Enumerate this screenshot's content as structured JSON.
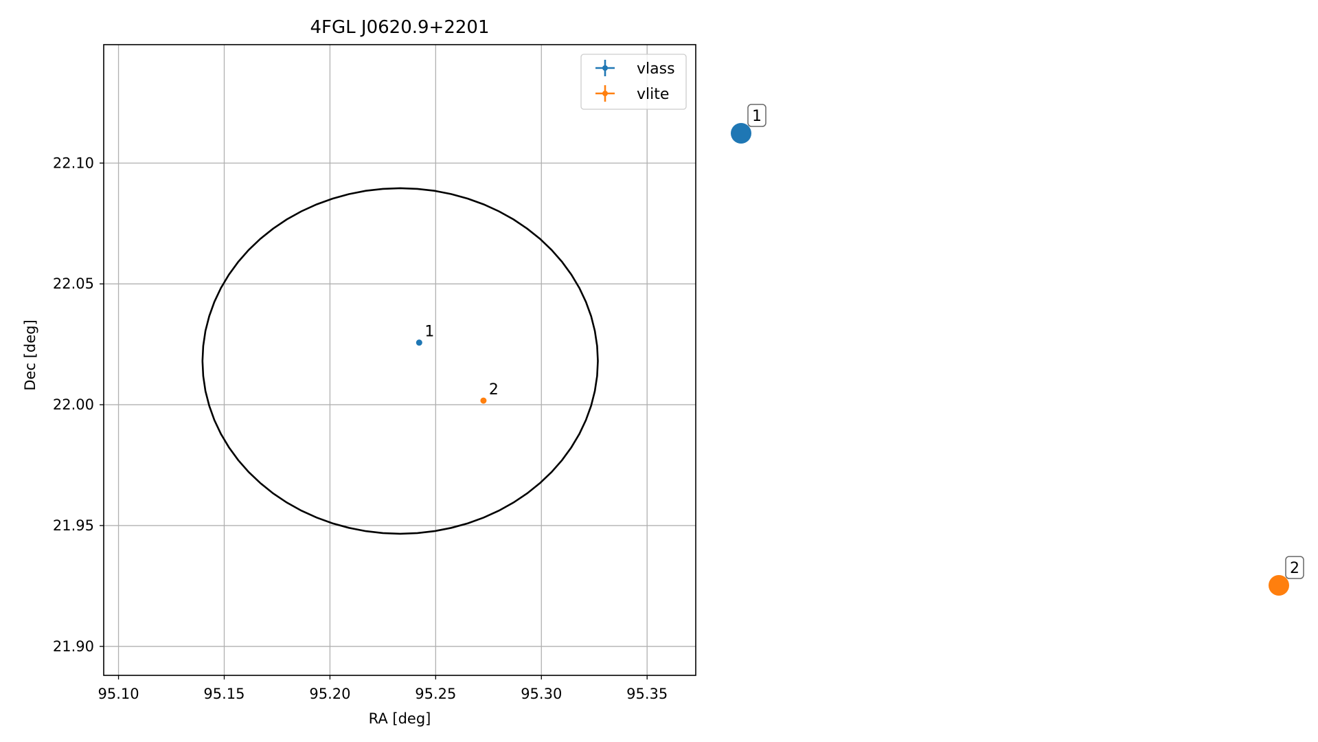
{
  "chart_data": {
    "type": "scatter",
    "title": "4FGL J0620.9+2201",
    "xlabel": "RA [deg]",
    "ylabel": "Dec [deg]",
    "xlim": [
      95.093,
      95.373
    ],
    "ylim": [
      21.888,
      22.149
    ],
    "xticks": [
      "95.10",
      "95.15",
      "95.20",
      "95.25",
      "95.30",
      "95.35"
    ],
    "yticks": [
      "21.90",
      "21.95",
      "22.00",
      "22.05",
      "22.10"
    ],
    "grid": true,
    "legend_position": "top-right",
    "series": [
      {
        "name": "vlass",
        "color": "#1f77b4",
        "points": [
          {
            "x": 95.2422,
            "y": 22.0257,
            "label": "1"
          }
        ]
      },
      {
        "name": "vlite",
        "color": "#ff7f0e",
        "points": [
          {
            "x": 95.2726,
            "y": 22.0017,
            "label": "2"
          }
        ]
      }
    ],
    "error_ellipse": {
      "center_x": 95.2332,
      "center_y": 22.0181,
      "radius_x": 0.0935,
      "radius_y": 0.0715,
      "color": "#000000"
    },
    "markers_outside": [
      {
        "label": "1",
        "color": "#1f77b4"
      },
      {
        "label": "2",
        "color": "#ff7f0e"
      }
    ]
  }
}
